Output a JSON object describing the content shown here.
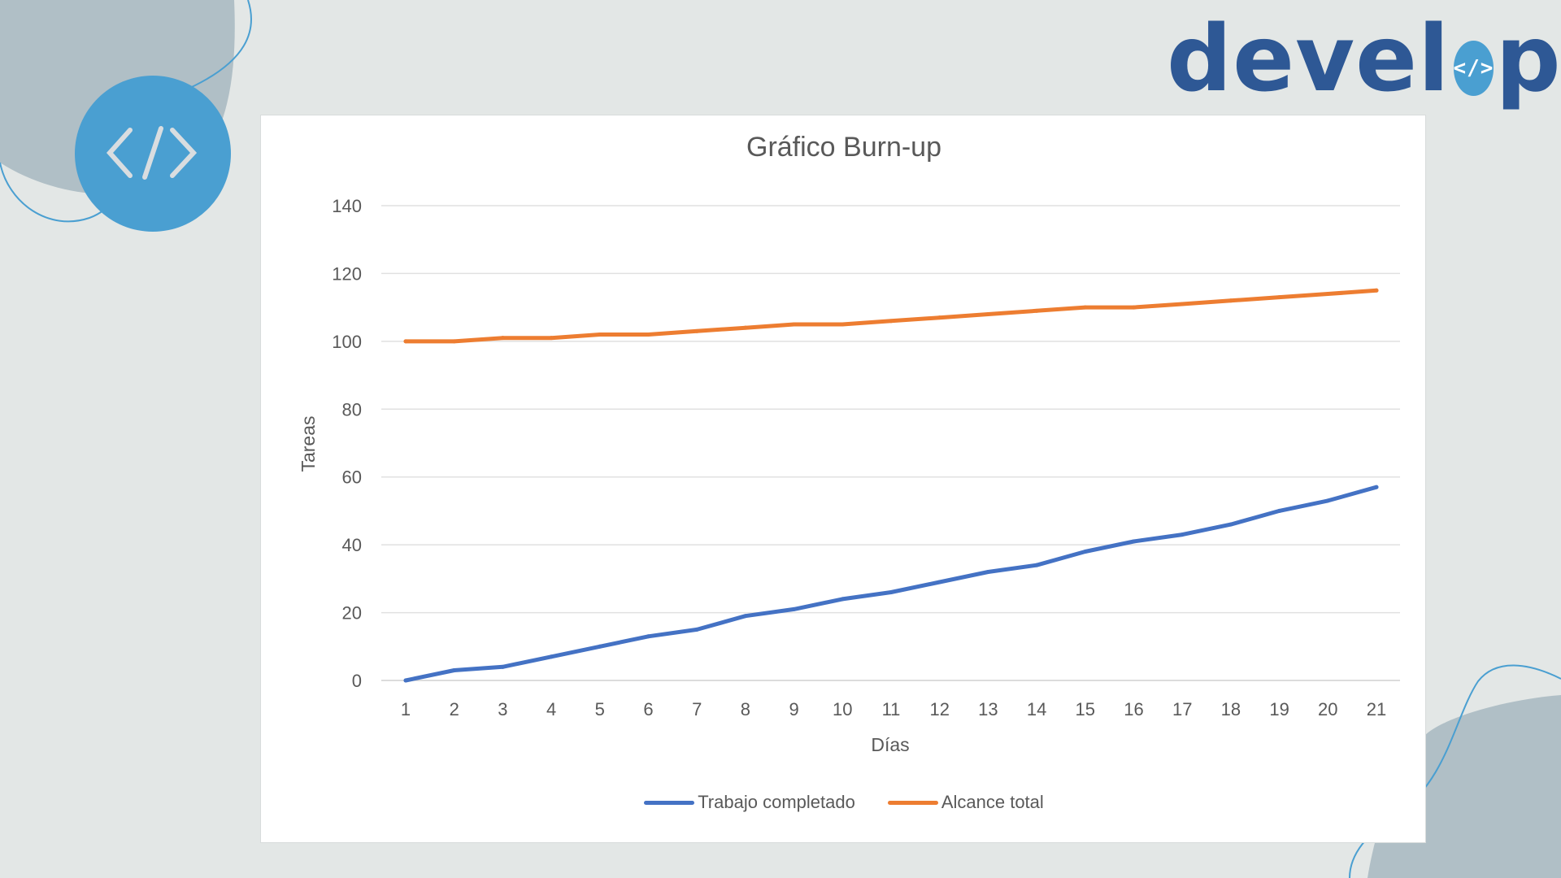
{
  "brand": {
    "prefix": "devel",
    "badge": "</>",
    "suffix": "pn"
  },
  "icon": {
    "name": "code-icon",
    "glyph": "</>"
  },
  "colors": {
    "background": "#e3e7e6",
    "blob": "#b0bfc6",
    "accent": "#4a9fd1",
    "brand": "#2e5895",
    "series_completed": "#4472c4",
    "series_scope": "#ed7d31"
  },
  "chart_data": {
    "type": "line",
    "title": "Gráfico Burn-up",
    "xlabel": "Días",
    "ylabel": "Tareas",
    "ylim": [
      0,
      140
    ],
    "yticks": [
      0,
      20,
      40,
      60,
      80,
      100,
      120,
      140
    ],
    "grid": true,
    "legend": "bottom",
    "x": [
      "1",
      "2",
      "3",
      "4",
      "5",
      "6",
      "7",
      "8",
      "9",
      "10",
      "11",
      "12",
      "13",
      "14",
      "15",
      "16",
      "17",
      "18",
      "19",
      "20",
      "21"
    ],
    "series": [
      {
        "name": "Trabajo completado",
        "color": "#4472c4",
        "values": [
          0,
          3,
          4,
          7,
          10,
          13,
          15,
          19,
          21,
          24,
          26,
          29,
          32,
          34,
          38,
          41,
          43,
          46,
          50,
          53,
          57
        ]
      },
      {
        "name": "Alcance total",
        "color": "#ed7d31",
        "values": [
          100,
          100,
          101,
          101,
          102,
          102,
          103,
          104,
          105,
          105,
          106,
          107,
          108,
          109,
          110,
          110,
          111,
          112,
          113,
          114,
          115
        ]
      }
    ]
  }
}
